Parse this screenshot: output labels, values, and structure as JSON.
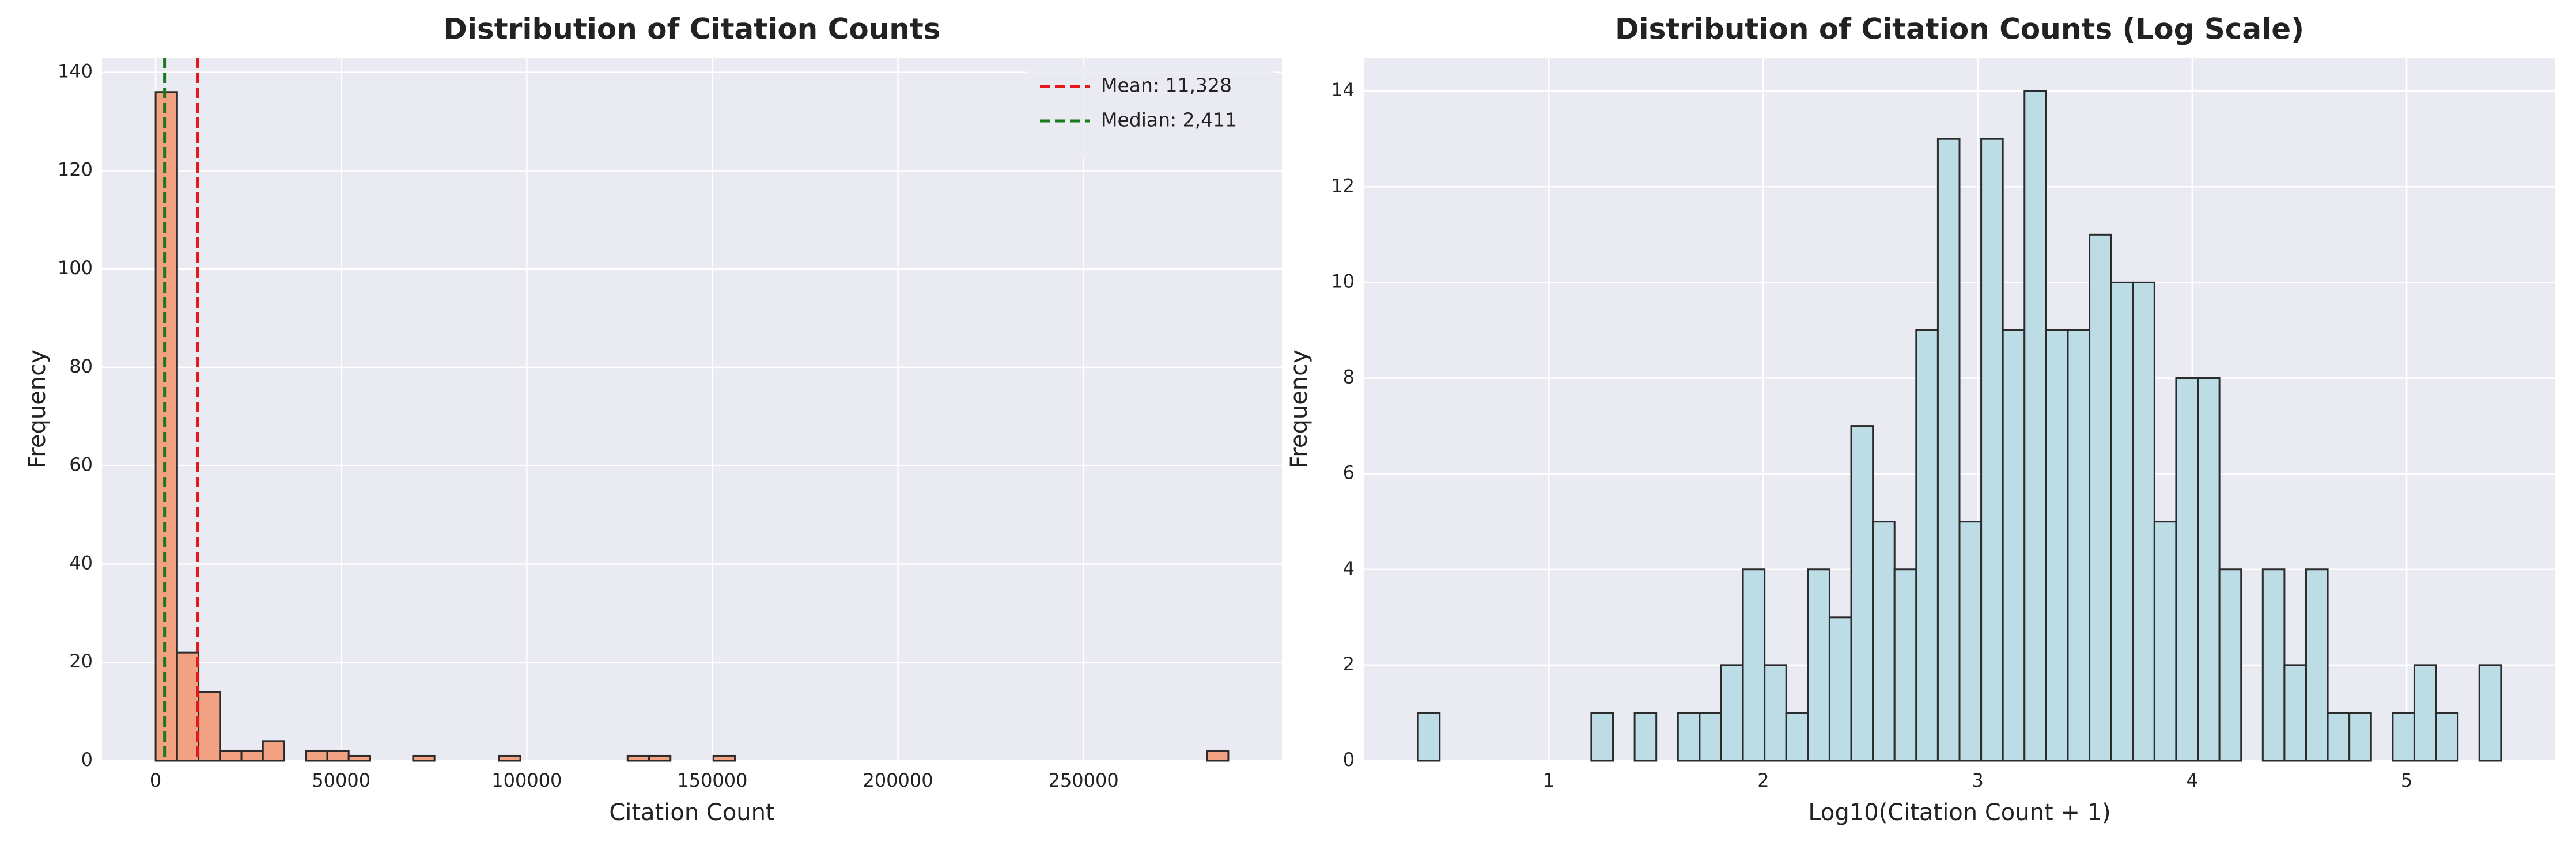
{
  "chart_data": [
    {
      "type": "histogram",
      "title": "Distribution of Citation Counts",
      "xlabel": "Citation Count",
      "ylabel": "Frequency",
      "bins": [
        0,
        5780,
        11560,
        17340,
        23120,
        28900,
        34680,
        40460,
        46240,
        52020,
        57800,
        63580,
        69360,
        75140,
        80920,
        86700,
        92480,
        98260,
        104040,
        109820,
        115600,
        121380,
        127160,
        132940,
        138720,
        144500,
        150280,
        156060,
        161840,
        167620,
        173400,
        179180,
        184960,
        190740,
        196520,
        202300,
        208080,
        213860,
        219640,
        225420,
        231200,
        236980,
        242760,
        248540,
        254320,
        260100,
        265880,
        271660,
        277440,
        283220,
        289000
      ],
      "values": [
        136,
        22,
        14,
        2,
        2,
        4,
        0,
        2,
        2,
        1,
        0,
        0,
        1,
        0,
        0,
        0,
        1,
        0,
        0,
        0,
        0,
        0,
        1,
        1,
        0,
        0,
        1,
        0,
        0,
        0,
        0,
        0,
        0,
        0,
        0,
        0,
        0,
        0,
        0,
        0,
        0,
        0,
        0,
        0,
        0,
        0,
        0,
        0,
        0,
        2
      ],
      "color": "#f2a283",
      "edgecolor": "#2b2b2b",
      "xlim": [
        -14450,
        303450
      ],
      "ylim": [
        0,
        143
      ],
      "xticks": [
        0,
        50000,
        100000,
        150000,
        200000,
        250000
      ],
      "yticks": [
        0,
        20,
        40,
        60,
        80,
        100,
        120,
        140
      ],
      "grid": true,
      "lines": [
        {
          "label": "Mean: 11,328",
          "value": 11328,
          "color": "#e31a1c"
        },
        {
          "label": "Median: 2,411",
          "value": 2411,
          "color": "#1a7a1a"
        }
      ],
      "legend": "upper right"
    },
    {
      "type": "histogram",
      "title": "Distribution of Citation Counts (Log Scale)",
      "xlabel": "Log10(Citation Count + 1)",
      "ylabel": "Frequency",
      "bins": [
        0.39,
        0.491,
        0.592,
        0.693,
        0.794,
        0.895,
        0.996,
        1.097,
        1.198,
        1.299,
        1.4,
        1.501,
        1.602,
        1.703,
        1.804,
        1.905,
        2.006,
        2.107,
        2.208,
        2.309,
        2.41,
        2.511,
        2.612,
        2.713,
        2.814,
        2.915,
        3.016,
        3.117,
        3.218,
        3.319,
        3.42,
        3.521,
        3.622,
        3.723,
        3.824,
        3.925,
        4.026,
        4.127,
        4.228,
        4.329,
        4.43,
        4.531,
        4.632,
        4.733,
        4.834,
        4.935,
        5.036,
        5.137,
        5.238,
        5.339,
        5.44
      ],
      "values": [
        1,
        0,
        0,
        0,
        0,
        0,
        0,
        0,
        1,
        0,
        1,
        0,
        1,
        1,
        2,
        4,
        2,
        1,
        4,
        3,
        7,
        5,
        4,
        9,
        13,
        5,
        13,
        9,
        14,
        9,
        9,
        11,
        10,
        10,
        5,
        8,
        8,
        4,
        0,
        4,
        2,
        4,
        1,
        1,
        0,
        1,
        2,
        1,
        0,
        2
      ],
      "color": "#bcdce6",
      "edgecolor": "#2b2b2b",
      "xlim": [
        0.137,
        5.693
      ],
      "ylim": [
        0,
        14.7
      ],
      "xticks": [
        1,
        2,
        3,
        4,
        5
      ],
      "yticks": [
        0,
        2,
        4,
        6,
        8,
        10,
        12,
        14
      ],
      "grid": true
    }
  ]
}
